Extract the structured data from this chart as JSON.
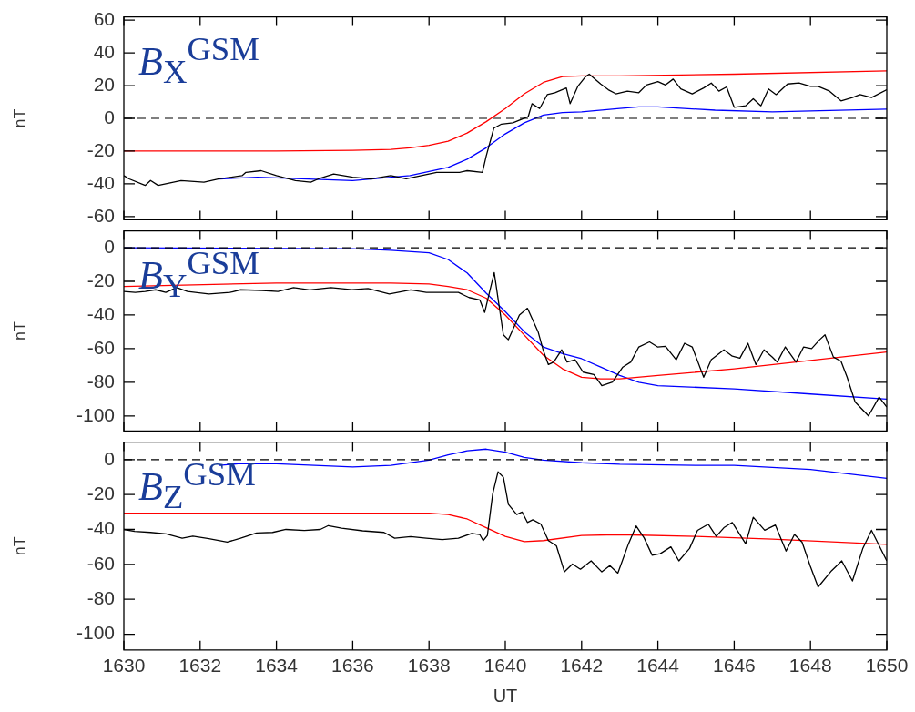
{
  "chart_data": [
    {
      "type": "line",
      "ylabel": "nT",
      "annotations": [
        "B$_{X}$$^{GSM}$"
      ],
      "xlim": [
        1630,
        1650
      ],
      "xticks": [
        1630,
        1632,
        1634,
        1636,
        1638,
        1640,
        1642,
        1644,
        1646,
        1648,
        1650
      ],
      "ylim": [
        -62,
        62
      ],
      "yticks": [
        -60,
        -40,
        -20,
        0,
        20,
        40,
        60
      ],
      "tick_labels": "y",
      "grid": false,
      "legend": false,
      "marker": "none",
      "ref_lines": [
        {
          "axis": "y",
          "value": 0,
          "color": "#000000",
          "line_style": "dashed"
        }
      ],
      "series": [
        {
          "color": "#000000",
          "x": [
            1630,
            1630.14,
            1630.56,
            1630.7,
            1630.9,
            1631.1,
            1631.5,
            1632.1,
            1632.5,
            1633.1,
            1633.2,
            1633.6,
            1634,
            1634.5,
            1634.9,
            1635.1,
            1635.5,
            1636,
            1636.5,
            1637,
            1637.4,
            1637.8,
            1638.2,
            1638.8,
            1639,
            1639.4,
            1639.5,
            1639.7,
            1639.9,
            1640.2,
            1640.6,
            1640.7,
            1640.9,
            1641.1,
            1641.3,
            1641.6,
            1641.7,
            1641.9,
            1642.1,
            1642.2,
            1642.5,
            1642.7,
            1642.9,
            1643.2,
            1643.5,
            1643.7,
            1644,
            1644.2,
            1644.4,
            1644.6,
            1644.9,
            1645.2,
            1645.4,
            1645.6,
            1645.8,
            1646,
            1646.3,
            1646.5,
            1646.7,
            1646.9,
            1647.1,
            1647.4,
            1647.7,
            1648,
            1648.2,
            1648.5,
            1648.8,
            1649.1,
            1649.3,
            1649.6,
            1650
          ],
          "values": [
            -35,
            -37,
            -41,
            -38,
            -41,
            -40,
            -38,
            -39,
            -37,
            -35,
            -33,
            -32,
            -35,
            -38,
            -39,
            -37,
            -34,
            -36,
            -37,
            -35,
            -37,
            -35,
            -33,
            -33,
            -32,
            -33,
            -23,
            -6,
            -3.5,
            -2.7,
            1,
            9,
            6,
            14.5,
            15.7,
            18.6,
            9,
            19.5,
            25.4,
            27,
            21,
            17.5,
            15,
            16.6,
            15.7,
            20.4,
            22.5,
            20.4,
            24,
            18,
            15,
            18.6,
            21.6,
            16.6,
            19.2,
            6.8,
            7.7,
            12,
            7.7,
            18,
            14.5,
            21,
            21.6,
            19.5,
            19.5,
            16.6,
            10.7,
            12.7,
            14.5,
            12.7,
            17.5
          ]
        },
        {
          "color": "#ff0000",
          "x": [
            1630,
            1634,
            1636,
            1637,
            1637.5,
            1638,
            1638.5,
            1639,
            1639.5,
            1640,
            1640.5,
            1641,
            1641.5,
            1642,
            1643,
            1646,
            1650
          ],
          "values": [
            -20,
            -20,
            -19.5,
            -19,
            -18,
            -16.5,
            -14,
            -9,
            -2,
            6,
            15,
            22,
            25.5,
            26,
            26,
            27,
            29
          ]
        },
        {
          "color": "#0000ff",
          "x": [
            1632.5,
            1633.5,
            1636,
            1637.5,
            1638.5,
            1639,
            1639.5,
            1640,
            1640.5,
            1641,
            1641.5,
            1642,
            1643,
            1643.5,
            1644,
            1645.5,
            1647,
            1648,
            1650
          ],
          "values": [
            -37,
            -36,
            -38,
            -35,
            -30,
            -25,
            -18,
            -9.5,
            -2.7,
            2,
            3.5,
            4,
            6,
            7,
            7,
            5,
            4,
            4.5,
            5.6
          ]
        }
      ]
    },
    {
      "type": "line",
      "ylabel": "nT",
      "annotations": [
        "B$_{Y}$$^{GSM}$"
      ],
      "xlim": [
        1630,
        1650
      ],
      "xticks": [
        1630,
        1632,
        1634,
        1636,
        1638,
        1640,
        1642,
        1644,
        1646,
        1648,
        1650
      ],
      "ylim": [
        -109,
        10
      ],
      "yticks": [
        -100,
        -80,
        -60,
        -40,
        -20,
        0
      ],
      "tick_labels": "y",
      "grid": false,
      "legend": false,
      "marker": "none",
      "ref_lines": [
        {
          "axis": "y",
          "value": 0,
          "color": "#000000",
          "line_style": "dashed"
        }
      ],
      "series": [
        {
          "color": "#000000",
          "x": [
            1630,
            1630.3,
            1630.56,
            1630.835,
            1631.1,
            1631.39,
            1631.67,
            1632.23,
            1632.78,
            1633.06,
            1633.62,
            1634.04,
            1634.45,
            1634.87,
            1635.43,
            1635.98,
            1636.4,
            1636.96,
            1637.52,
            1637.93,
            1638.77,
            1639.05,
            1639.33,
            1639.46,
            1639.6,
            1639.71,
            1639.95,
            1640.08,
            1640.37,
            1640.58,
            1640.86,
            1640.99,
            1641.13,
            1641.27,
            1641.48,
            1641.62,
            1641.83,
            1642.04,
            1642.32,
            1642.53,
            1642.81,
            1643.08,
            1643.29,
            1643.5,
            1643.78,
            1643.99,
            1644.2,
            1644.48,
            1644.7,
            1644.9,
            1645.2,
            1645.4,
            1645.73,
            1645.95,
            1646.15,
            1646.36,
            1646.57,
            1646.78,
            1647,
            1647.13,
            1647.34,
            1647.62,
            1647.82,
            1648.03,
            1648.24,
            1648.38,
            1648.6,
            1648.8,
            1648.96,
            1649.17,
            1649.52,
            1649.8,
            1650
          ],
          "values": [
            -26,
            -26.6,
            -26,
            -25,
            -26.6,
            -23.7,
            -26,
            -27.5,
            -26.6,
            -25,
            -25.4,
            -26,
            -23.7,
            -25.1,
            -23.7,
            -24.9,
            -24.3,
            -27.5,
            -25.1,
            -26.6,
            -26.6,
            -29.6,
            -31,
            -38.5,
            -25.1,
            -14.8,
            -51.8,
            -54.7,
            -40,
            -36,
            -50,
            -60.7,
            -69.5,
            -68,
            -60.7,
            -68,
            -66.6,
            -74,
            -75.4,
            -82,
            -79.9,
            -71,
            -68,
            -59,
            -56,
            -59,
            -58.6,
            -66.6,
            -56.8,
            -59,
            -77,
            -66.6,
            -60.7,
            -64.5,
            -65.7,
            -56.8,
            -69.5,
            -60.7,
            -65.1,
            -68,
            -59,
            -68,
            -59,
            -60,
            -54.7,
            -51.8,
            -65,
            -67.5,
            -77,
            -91.7,
            -100,
            -88.8,
            -94.7
          ]
        },
        {
          "color": "#ff0000",
          "x": [
            1630,
            1634,
            1637,
            1638,
            1638.5,
            1639,
            1639.5,
            1640,
            1640.5,
            1641,
            1641.5,
            1642,
            1642.5,
            1643,
            1644,
            1646,
            1648,
            1650
          ],
          "values": [
            -23,
            -21,
            -21,
            -21.6,
            -23,
            -25,
            -30,
            -40,
            -52,
            -64,
            -72,
            -77,
            -78,
            -78,
            -76,
            -72,
            -67,
            -62
          ]
        },
        {
          "color": "#0000ff",
          "x": [
            1630,
            1636,
            1637,
            1638,
            1638.5,
            1639,
            1639.5,
            1640,
            1640.5,
            1641,
            1641.5,
            1642,
            1642.5,
            1643,
            1643.5,
            1644,
            1646,
            1648,
            1650
          ],
          "values": [
            0,
            -0.6,
            -1.5,
            -3,
            -7,
            -15,
            -27,
            -38,
            -50,
            -59,
            -63,
            -66,
            -71,
            -76,
            -80,
            -82,
            -84,
            -87,
            -90
          ]
        }
      ]
    },
    {
      "type": "line",
      "ylabel": "nT",
      "xlabel": "UT",
      "annotations": [
        "B$_{Z}$$^{GSM}$"
      ],
      "xlim": [
        1630,
        1650
      ],
      "xticks": [
        1630,
        1632,
        1634,
        1636,
        1638,
        1640,
        1642,
        1644,
        1646,
        1648,
        1650
      ],
      "ylim": [
        -109,
        10
      ],
      "yticks": [
        -100,
        -80,
        -60,
        -40,
        -20,
        0
      ],
      "grid": false,
      "legend": false,
      "marker": "none",
      "ref_lines": [
        {
          "axis": "y",
          "value": 0,
          "color": "#000000",
          "line_style": "dashed"
        }
      ],
      "series": [
        {
          "color": "#000000",
          "x": [
            1630,
            1630.28,
            1630.7,
            1631.11,
            1631.53,
            1631.81,
            1632.23,
            1632.71,
            1633.06,
            1633.48,
            1633.9,
            1634.25,
            1634.73,
            1635.15,
            1635.36,
            1635.71,
            1636.26,
            1636.82,
            1637.1,
            1637.52,
            1637.93,
            1638.35,
            1638.77,
            1639.12,
            1639.33,
            1639.42,
            1639.53,
            1639.67,
            1639.81,
            1639.95,
            1640.08,
            1640.3,
            1640.44,
            1640.58,
            1640.72,
            1640.93,
            1641.13,
            1641.34,
            1641.55,
            1641.76,
            1641.97,
            1642.25,
            1642.53,
            1642.74,
            1642.95,
            1643.22,
            1643.43,
            1643.64,
            1643.85,
            1644.06,
            1644.34,
            1644.55,
            1644.83,
            1645.04,
            1645.32,
            1645.53,
            1645.73,
            1645.95,
            1646.3,
            1646.5,
            1646.8,
            1647.08,
            1647.36,
            1647.58,
            1647.78,
            1647.99,
            1648.2,
            1648.55,
            1648.82,
            1649.1,
            1649.37,
            1649.6,
            1650
          ],
          "values": [
            -40,
            -41.1,
            -41.7,
            -42.6,
            -45,
            -43.8,
            -45.3,
            -47.3,
            -45,
            -42,
            -41.7,
            -40,
            -40.6,
            -40,
            -37.8,
            -39.3,
            -40.8,
            -41.7,
            -45,
            -44.1,
            -45,
            -45.8,
            -45,
            -42.3,
            -42.9,
            -46.4,
            -43.5,
            -19.6,
            -7,
            -10.1,
            -25.6,
            -31.5,
            -30,
            -36,
            -34.5,
            -36.9,
            -46.4,
            -49.4,
            -64.3,
            -59.8,
            -62.8,
            -58,
            -64.3,
            -60.7,
            -65,
            -48.8,
            -38,
            -44.9,
            -54.8,
            -53.9,
            -50,
            -58,
            -50.9,
            -40.5,
            -37,
            -44,
            -39,
            -36,
            -48.2,
            -33,
            -40.5,
            -37.5,
            -52.4,
            -42.9,
            -47.3,
            -60.7,
            -73,
            -63.7,
            -58,
            -69.5,
            -51,
            -40.5,
            -58
          ]
        },
        {
          "color": "#ff0000",
          "x": [
            1630,
            1638,
            1638.5,
            1639,
            1639.5,
            1640,
            1640.5,
            1641,
            1642,
            1643,
            1645,
            1647,
            1650
          ],
          "values": [
            -30.7,
            -30.7,
            -31.5,
            -34,
            -39,
            -44,
            -47,
            -46.4,
            -43.5,
            -43,
            -44,
            -45.5,
            -48.5
          ]
        },
        {
          "color": "#0000ff",
          "x": [
            1632.5,
            1633,
            1634,
            1636,
            1637,
            1638,
            1638.5,
            1639,
            1639.5,
            1640,
            1640.5,
            1641,
            1642,
            1643,
            1645,
            1646,
            1648,
            1650
          ],
          "values": [
            -3.3,
            -2.4,
            -2.4,
            -4.2,
            -3.3,
            -0.3,
            2.7,
            5,
            6,
            4.2,
            1.2,
            -0.3,
            -1.8,
            -2.7,
            -3.3,
            -3.3,
            -5.7,
            -10.7
          ]
        }
      ]
    }
  ]
}
